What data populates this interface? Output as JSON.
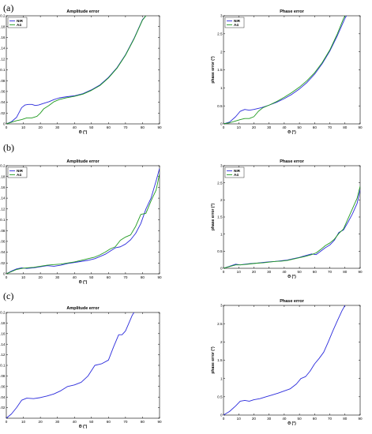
{
  "panel_labels": [
    "(a)",
    "(b)",
    "(c)"
  ],
  "colors": {
    "NIR": "#2b2bdc",
    "A4": "#1f9a1f",
    "axis": "#000000"
  },
  "chart_data": [
    {
      "type": "line",
      "panel": "(a)",
      "title": "Amplitude error",
      "xlabel": "Θ (°)",
      "ylabel": "dB",
      "xlim": [
        0,
        90
      ],
      "ylim": [
        0,
        0.2
      ],
      "xticks": [
        0,
        10,
        20,
        30,
        40,
        50,
        60,
        70,
        80,
        90
      ],
      "yticks": [
        0,
        0.02,
        0.04,
        0.06,
        0.08,
        0.1,
        0.12,
        0.14,
        0.16,
        0.18,
        0.2
      ],
      "ytick_labels": [
        "0",
        "0.02",
        "0.04",
        "0.06",
        "0.08",
        "0.1",
        "0.12",
        "0.14",
        "0.16",
        "0.18",
        "0.2"
      ],
      "legend": "top-left",
      "series": [
        {
          "name": "NIR",
          "color": "#2b2bdc",
          "x": [
            0,
            3,
            6,
            9,
            11,
            13,
            15,
            17,
            19,
            22,
            25,
            28,
            31,
            35,
            40,
            45,
            50,
            55,
            60,
            65,
            70,
            75,
            80,
            82
          ],
          "y": [
            0,
            0.004,
            0.012,
            0.03,
            0.035,
            0.036,
            0.036,
            0.034,
            0.035,
            0.038,
            0.041,
            0.045,
            0.048,
            0.05,
            0.052,
            0.056,
            0.063,
            0.072,
            0.086,
            0.104,
            0.128,
            0.158,
            0.193,
            0.2
          ]
        },
        {
          "name": "A4",
          "color": "#1f9a1f",
          "x": [
            0,
            3,
            6,
            9,
            12,
            15,
            18,
            20,
            22,
            25,
            28,
            31,
            35,
            40,
            45,
            50,
            55,
            60,
            65,
            70,
            75,
            80,
            82
          ],
          "y": [
            0,
            0.003,
            0.006,
            0.008,
            0.011,
            0.011,
            0.014,
            0.02,
            0.028,
            0.034,
            0.041,
            0.045,
            0.048,
            0.051,
            0.055,
            0.062,
            0.071,
            0.085,
            0.103,
            0.127,
            0.157,
            0.192,
            0.2
          ]
        }
      ]
    },
    {
      "type": "line",
      "panel": "(a)",
      "title": "Phase error",
      "xlabel": "Θ (°)",
      "ylabel": "phase error (°)",
      "xlim": [
        0,
        90
      ],
      "ylim": [
        0,
        3
      ],
      "xticks": [
        0,
        10,
        20,
        30,
        40,
        50,
        60,
        70,
        80,
        90
      ],
      "yticks": [
        0,
        0.5,
        1,
        1.5,
        2,
        2.5,
        3
      ],
      "ytick_labels": [
        "0",
        "0.5",
        "1",
        "1.5",
        "2",
        "2.5",
        "3"
      ],
      "legend": "top-left",
      "series": [
        {
          "name": "NIR",
          "color": "#2b2bdc",
          "x": [
            0,
            4,
            8,
            11,
            14,
            17,
            20,
            25,
            30,
            35,
            40,
            45,
            50,
            55,
            60,
            65,
            70,
            75,
            80,
            81
          ],
          "y": [
            0,
            0.05,
            0.2,
            0.35,
            0.4,
            0.38,
            0.4,
            0.45,
            0.52,
            0.6,
            0.7,
            0.82,
            0.97,
            1.15,
            1.38,
            1.67,
            2.02,
            2.45,
            2.93,
            3.0
          ]
        },
        {
          "name": "A4",
          "color": "#1f9a1f",
          "x": [
            0,
            4,
            8,
            11,
            14,
            17,
            20,
            23,
            26,
            30,
            35,
            40,
            45,
            50,
            55,
            60,
            65,
            70,
            75,
            79,
            80
          ],
          "y": [
            0,
            0.03,
            0.08,
            0.12,
            0.15,
            0.15,
            0.2,
            0.35,
            0.45,
            0.52,
            0.62,
            0.74,
            0.87,
            1.02,
            1.2,
            1.42,
            1.7,
            2.05,
            2.5,
            2.92,
            3.0
          ]
        }
      ]
    },
    {
      "type": "line",
      "panel": "(b)",
      "title": "Amplitude error",
      "xlabel": "Θ (°)",
      "ylabel": "dB",
      "xlim": [
        0,
        90
      ],
      "ylim": [
        0,
        0.2
      ],
      "xticks": [
        0,
        10,
        20,
        30,
        40,
        50,
        60,
        70,
        80,
        90
      ],
      "yticks": [
        0,
        0.02,
        0.04,
        0.06,
        0.08,
        0.1,
        0.12,
        0.14,
        0.16,
        0.18,
        0.2
      ],
      "ytick_labels": [
        "0",
        "0.02",
        "0.04",
        "0.06",
        "0.08",
        "0.1",
        "0.12",
        "0.14",
        "0.16",
        "0.18",
        "0.2"
      ],
      "legend": "top-left",
      "series": [
        {
          "name": "NIR",
          "color": "#2b2bdc",
          "x": [
            0,
            3,
            6,
            9,
            12,
            16,
            20,
            24,
            28,
            32,
            36,
            40,
            44,
            48,
            52,
            55,
            58,
            61,
            64,
            67,
            70,
            73,
            76,
            79,
            82,
            85,
            88,
            90
          ],
          "y": [
            0,
            0.005,
            0.009,
            0.011,
            0.01,
            0.011,
            0.013,
            0.015,
            0.014,
            0.016,
            0.019,
            0.021,
            0.023,
            0.025,
            0.028,
            0.032,
            0.036,
            0.042,
            0.048,
            0.05,
            0.055,
            0.063,
            0.075,
            0.093,
            0.12,
            0.14,
            0.172,
            0.195
          ]
        },
        {
          "name": "A4",
          "color": "#1f9a1f",
          "x": [
            0,
            3,
            6,
            9,
            12,
            16,
            20,
            24,
            28,
            32,
            36,
            40,
            44,
            48,
            52,
            55,
            58,
            61,
            64,
            67,
            70,
            73,
            76,
            79,
            82,
            85,
            88,
            90
          ],
          "y": [
            0,
            0.004,
            0.008,
            0.01,
            0.011,
            0.012,
            0.014,
            0.016,
            0.017,
            0.018,
            0.02,
            0.022,
            0.025,
            0.028,
            0.031,
            0.035,
            0.04,
            0.046,
            0.05,
            0.062,
            0.068,
            0.072,
            0.088,
            0.11,
            0.112,
            0.135,
            0.155,
            0.185
          ]
        }
      ]
    },
    {
      "type": "line",
      "panel": "(b)",
      "title": "Phase error",
      "xlabel": "Θ (°)",
      "ylabel": "phase error (°)",
      "xlim": [
        0,
        90
      ],
      "ylim": [
        0,
        3
      ],
      "xticks": [
        0,
        10,
        20,
        30,
        40,
        50,
        60,
        70,
        80,
        90
      ],
      "yticks": [
        0,
        0.5,
        1,
        1.5,
        2,
        2.5,
        3
      ],
      "ytick_labels": [
        "0",
        "0.5",
        "1",
        "1.5",
        "2",
        "2.5",
        "3"
      ],
      "legend": "top-left",
      "series": [
        {
          "name": "NIR",
          "color": "#2b2bdc",
          "x": [
            0,
            4,
            8,
            11,
            14,
            18,
            22,
            26,
            30,
            34,
            38,
            42,
            46,
            50,
            54,
            58,
            61,
            64,
            67,
            70,
            73,
            76,
            79,
            82,
            85,
            88,
            90
          ],
          "y": [
            0,
            0.06,
            0.12,
            0.1,
            0.12,
            0.14,
            0.15,
            0.17,
            0.19,
            0.2,
            0.22,
            0.24,
            0.28,
            0.32,
            0.37,
            0.42,
            0.4,
            0.5,
            0.6,
            0.68,
            0.82,
            1.05,
            1.12,
            1.35,
            1.6,
            1.9,
            2.3
          ]
        },
        {
          "name": "A4",
          "color": "#1f9a1f",
          "x": [
            0,
            4,
            8,
            11,
            14,
            18,
            22,
            26,
            30,
            34,
            38,
            42,
            46,
            50,
            54,
            58,
            61,
            64,
            67,
            70,
            73,
            76,
            79,
            82,
            85,
            88,
            90
          ],
          "y": [
            0,
            0.05,
            0.1,
            0.1,
            0.11,
            0.13,
            0.15,
            0.16,
            0.18,
            0.2,
            0.21,
            0.23,
            0.27,
            0.31,
            0.35,
            0.4,
            0.45,
            0.55,
            0.66,
            0.74,
            0.85,
            1.02,
            1.15,
            1.45,
            1.75,
            2.05,
            2.4
          ]
        }
      ]
    },
    {
      "type": "line",
      "panel": "(c)",
      "title": "Amplitude error",
      "xlabel": "Θ (°)",
      "ylabel": "dB",
      "xlim": [
        0,
        90
      ],
      "ylim": [
        0,
        0.2
      ],
      "xticks": [
        0,
        10,
        20,
        30,
        40,
        50,
        60,
        70,
        80,
        90
      ],
      "yticks": [
        0,
        0.02,
        0.04,
        0.06,
        0.08,
        0.1,
        0.12,
        0.14,
        0.16,
        0.18,
        0.2
      ],
      "ytick_labels": [
        "",
        "0.02",
        "0.04",
        "0.06",
        "0.08",
        "0.1",
        "0.12",
        "0.14",
        "0.16",
        "0.18",
        "0.2"
      ],
      "legend": "none",
      "series": [
        {
          "color": "#2b2bdc",
          "x": [
            0,
            3,
            6,
            9,
            12,
            16,
            20,
            24,
            28,
            32,
            36,
            40,
            44,
            48,
            52,
            56,
            60,
            63,
            66,
            68,
            70,
            72,
            74,
            75
          ],
          "y": [
            0,
            0.008,
            0.02,
            0.034,
            0.038,
            0.037,
            0.039,
            0.042,
            0.046,
            0.052,
            0.06,
            0.063,
            0.068,
            0.08,
            0.1,
            0.103,
            0.11,
            0.135,
            0.158,
            0.158,
            0.165,
            0.18,
            0.195,
            0.2
          ]
        }
      ]
    },
    {
      "type": "line",
      "panel": "(c)",
      "title": "Phase error",
      "xlabel": "Θ (°)",
      "ylabel": "phase error (°)",
      "xlim": [
        0,
        90
      ],
      "ylim": [
        0,
        3
      ],
      "xticks": [
        0,
        10,
        20,
        30,
        40,
        50,
        60,
        70,
        80,
        90
      ],
      "yticks": [
        0,
        0.5,
        1,
        1.5,
        2,
        2.5,
        3
      ],
      "ytick_labels": [
        "0",
        "0.5",
        "1",
        "1.5",
        "2",
        "2.5",
        "3"
      ],
      "legend": "none",
      "series": [
        {
          "color": "#2b2bdc",
          "x": [
            0,
            4,
            8,
            11,
            14,
            17,
            20,
            24,
            28,
            32,
            36,
            40,
            44,
            48,
            51,
            54,
            57,
            60,
            63,
            66,
            69,
            72,
            75,
            78,
            80
          ],
          "y": [
            0,
            0.1,
            0.25,
            0.38,
            0.4,
            0.38,
            0.42,
            0.45,
            0.5,
            0.55,
            0.6,
            0.66,
            0.72,
            0.85,
            1.0,
            1.05,
            1.2,
            1.4,
            1.55,
            1.72,
            2.0,
            2.3,
            2.58,
            2.85,
            3.0
          ]
        }
      ]
    }
  ]
}
